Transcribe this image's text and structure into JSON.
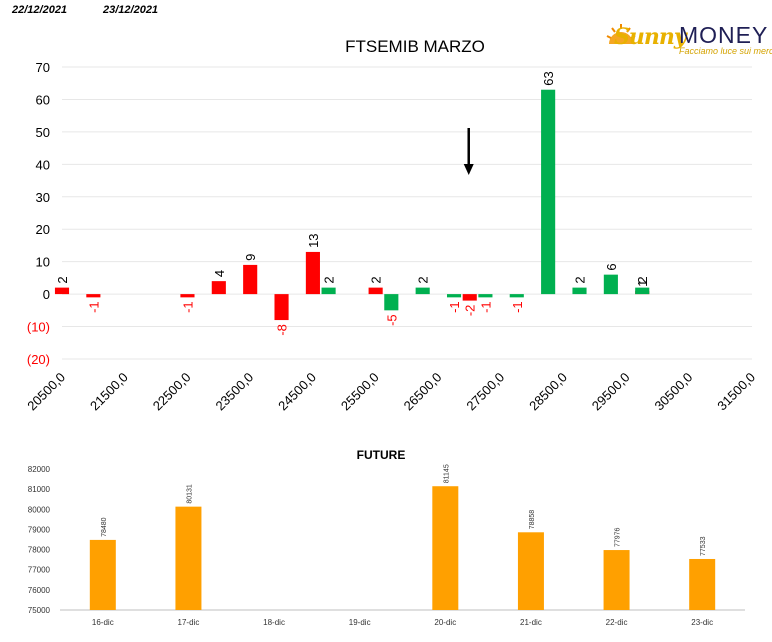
{
  "header": {
    "date_left": "22/12/2021",
    "date_right": "23/12/2021"
  },
  "logo": {
    "brand_sunny": "Sunny",
    "brand_money": "MONEY",
    "tagline": "Facciamo luce sui mercati"
  },
  "colors": {
    "red": "#ff0000",
    "green": "#00b050",
    "orange": "#ffa000",
    "text_dark": "#000000",
    "negative_label": "#ff0000",
    "grid": "#e7e7e7"
  },
  "chart_data": [
    {
      "type": "bar",
      "title": "FTSEMIB MARZO",
      "xlabel": "",
      "ylabel": "",
      "ylim": [
        -20,
        70
      ],
      "y_ticks": [
        "(20)",
        "(10)",
        "0",
        "10",
        "20",
        "30",
        "40",
        "50",
        "60",
        "70"
      ],
      "y_tick_values": [
        -20,
        -10,
        0,
        10,
        20,
        30,
        40,
        50,
        60,
        70
      ],
      "x_tick_labels": [
        "20500,0",
        "21500,0",
        "22500,0",
        "23500,0",
        "24500,0",
        "25500,0",
        "26500,0",
        "27500,0",
        "28500,0",
        "29500,0",
        "30500,0",
        "31500,0"
      ],
      "x_tick_values": [
        20500,
        21500,
        22500,
        23500,
        24500,
        25500,
        26500,
        27500,
        28500,
        29500,
        30500,
        31500
      ],
      "grid": true,
      "legend": "none",
      "annotation": "down-arrow above 27000",
      "annotation_x": 27000,
      "series": [
        {
          "color": "red",
          "points": [
            {
              "x": 20500,
              "y": 2,
              "label": "2"
            },
            {
              "x": 21000,
              "y": -1,
              "label": "-1"
            },
            {
              "x": 22500,
              "y": -1,
              "label": "-1"
            },
            {
              "x": 23000,
              "y": 4,
              "label": "4"
            },
            {
              "x": 23500,
              "y": 9,
              "label": "9"
            },
            {
              "x": 24000,
              "y": -8,
              "label": "-8"
            },
            {
              "x": 24500,
              "y": 13,
              "label": "13"
            },
            {
              "x": 25500,
              "y": 2,
              "label": "2"
            },
            {
              "x": 27000,
              "y": -2,
              "label": "-2"
            },
            {
              "x": 29750,
              "y": 1,
              "label": "1"
            }
          ]
        },
        {
          "color": "green",
          "points": [
            {
              "x": 24750,
              "y": 2,
              "label": "2"
            },
            {
              "x": 25750,
              "y": -5,
              "label": "-5"
            },
            {
              "x": 26250,
              "y": 2,
              "label": "2"
            },
            {
              "x": 26750,
              "y": -1,
              "label": "-1"
            },
            {
              "x": 27250,
              "y": -1,
              "label": "-1"
            },
            {
              "x": 27750,
              "y": -1,
              "label": "-1"
            },
            {
              "x": 28250,
              "y": 63,
              "label": "63"
            },
            {
              "x": 28750,
              "y": 2,
              "label": "2"
            },
            {
              "x": 29250,
              "y": 6,
              "label": "6"
            },
            {
              "x": 29750,
              "y": 2,
              "label": "2"
            }
          ]
        }
      ]
    },
    {
      "type": "bar",
      "title": "FUTURE",
      "xlabel": "",
      "ylabel": "",
      "ylim": [
        75000,
        82000
      ],
      "y_ticks": [
        "75000",
        "76000",
        "77000",
        "78000",
        "79000",
        "80000",
        "81000",
        "82000"
      ],
      "y_tick_values": [
        75000,
        76000,
        77000,
        78000,
        79000,
        80000,
        81000,
        82000
      ],
      "categories": [
        "16-dic",
        "17-dic",
        "18-dic",
        "19-dic",
        "20-dic",
        "21-dic",
        "22-dic",
        "23-dic"
      ],
      "values": [
        78480,
        80131,
        null,
        null,
        81145,
        78858,
        77976,
        77533
      ],
      "value_labels": [
        "78480",
        "80131",
        "",
        "",
        "81145",
        "78858",
        "77976",
        "77533"
      ],
      "grid": false,
      "legend": "none",
      "color": "orange"
    }
  ]
}
